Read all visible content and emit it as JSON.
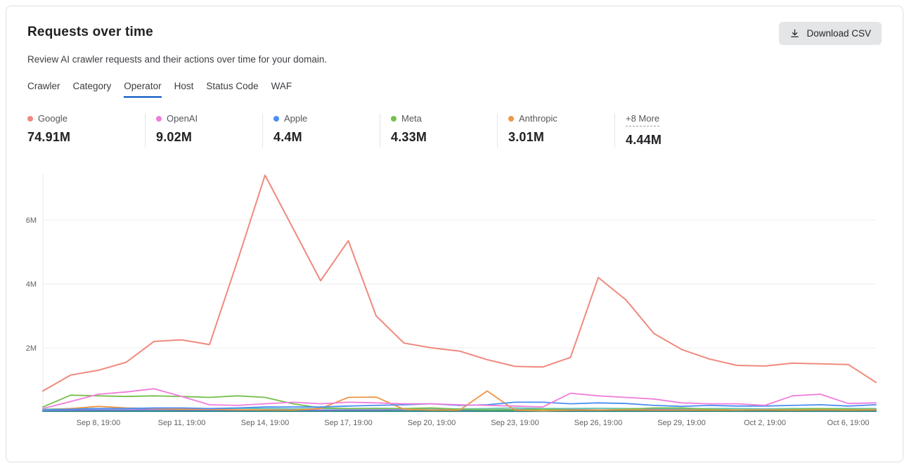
{
  "accent_color": "#0051c3",
  "card": {
    "title": "Requests over time",
    "subtitle": "Review AI crawler requests and their actions over time for your domain.",
    "download_button_label": "Download CSV"
  },
  "tabs": [
    {
      "label": "Crawler",
      "active": false
    },
    {
      "label": "Category",
      "active": false
    },
    {
      "label": "Operator",
      "active": true
    },
    {
      "label": "Host",
      "active": false
    },
    {
      "label": "Status Code",
      "active": false
    },
    {
      "label": "WAF",
      "active": false
    }
  ],
  "stats": [
    {
      "label": "Google",
      "value": "74.91M",
      "color": "#f0897e",
      "more": false
    },
    {
      "label": "OpenAI",
      "value": "9.02M",
      "color": "#f07ddb",
      "more": false
    },
    {
      "label": "Apple",
      "value": "4.4M",
      "color": "#4a8ef0",
      "more": false
    },
    {
      "label": "Meta",
      "value": "4.33M",
      "color": "#74bf4b",
      "more": false
    },
    {
      "label": "Anthropic",
      "value": "3.01M",
      "color": "#f09543",
      "more": false
    },
    {
      "label": "+8 More",
      "value": "4.44M",
      "color": null,
      "more": true
    }
  ],
  "chart_data": {
    "type": "line",
    "grid": "horizontal",
    "legend_position": "top-stats-row",
    "ylim": [
      0,
      7.5
    ],
    "y_ticks": [
      {
        "value": 2,
        "label": "2M"
      },
      {
        "value": 4,
        "label": "4M"
      },
      {
        "value": 6,
        "label": "6M"
      }
    ],
    "x_tick_labels": [
      "Sep 8, 19:00",
      "Sep 11, 19:00",
      "Sep 14, 19:00",
      "Sep 17, 19:00",
      "Sep 20, 19:00",
      "Sep 23, 19:00",
      "Sep 26, 19:00",
      "Sep 29, 19:00",
      "Oct 2, 19:00",
      "Oct 6, 19:00"
    ],
    "tick_indices": [
      2,
      5,
      8,
      11,
      14,
      17,
      20,
      23,
      26,
      29
    ],
    "unit": "M requests",
    "series": [
      {
        "name": "more-dark-teal",
        "color": "#16807a",
        "width": 2,
        "values": [
          0.02,
          0.02,
          0.02,
          0.02,
          0.02,
          0.02,
          0.02,
          0.02,
          0.02,
          0.02,
          0.02,
          0.02,
          0.02,
          0.02,
          0.02,
          0.02,
          0.02,
          0.02,
          0.02,
          0.02,
          0.02,
          0.02,
          0.02,
          0.02,
          0.02,
          0.02,
          0.02,
          0.02,
          0.02,
          0.02,
          0.02
        ]
      },
      {
        "name": "more-light-teal",
        "color": "#63c6ad",
        "width": 1.8,
        "values": [
          0.08,
          0.1,
          0.1,
          0.11,
          0.1,
          0.1,
          0.09,
          0.1,
          0.1,
          0.09,
          0.1,
          0.1,
          0.11,
          0.1,
          0.1,
          0.09,
          0.1,
          0.12,
          0.1,
          0.1,
          0.11,
          0.1,
          0.1,
          0.09,
          0.1,
          0.1,
          0.09,
          0.1,
          0.1,
          0.1,
          0.1
        ]
      },
      {
        "name": "more-purple",
        "color": "#8d7be0",
        "width": 1.8,
        "values": [
          0.04,
          0.05,
          0.06,
          0.06,
          0.07,
          0.06,
          0.06,
          0.05,
          0.06,
          0.06,
          0.05,
          0.06,
          0.06,
          0.07,
          0.06,
          0.06,
          0.06,
          0.07,
          0.08,
          0.07,
          0.06,
          0.06,
          0.07,
          0.06,
          0.06,
          0.05,
          0.06,
          0.06,
          0.07,
          0.06,
          0.06
        ]
      },
      {
        "name": "Meta",
        "color": "#74bf4b",
        "width": 1.8,
        "values": [
          0.15,
          0.52,
          0.5,
          0.48,
          0.5,
          0.48,
          0.45,
          0.5,
          0.45,
          0.25,
          0.12,
          0.1,
          0.1,
          0.1,
          0.12,
          0.08,
          0.06,
          0.06,
          0.08,
          0.06,
          0.05,
          0.08,
          0.12,
          0.12,
          0.08,
          0.06,
          0.06,
          0.08,
          0.1,
          0.08,
          0.08
        ]
      },
      {
        "name": "Anthropic",
        "color": "#f09543",
        "width": 1.8,
        "values": [
          0.05,
          0.1,
          0.17,
          0.12,
          0.1,
          0.08,
          0.08,
          0.06,
          0.06,
          0.05,
          0.1,
          0.45,
          0.46,
          0.08,
          0.05,
          0.05,
          0.65,
          0.05,
          0.03,
          0.05,
          0.05,
          0.06,
          0.05,
          0.05,
          0.05,
          0.05,
          0.06,
          0.05,
          0.06,
          0.05,
          0.06
        ]
      },
      {
        "name": "Apple",
        "color": "#4a8ef0",
        "width": 1.8,
        "values": [
          0.05,
          0.08,
          0.1,
          0.1,
          0.12,
          0.12,
          0.1,
          0.12,
          0.15,
          0.15,
          0.15,
          0.18,
          0.2,
          0.22,
          0.25,
          0.2,
          0.22,
          0.3,
          0.3,
          0.25,
          0.28,
          0.26,
          0.2,
          0.17,
          0.2,
          0.18,
          0.18,
          0.2,
          0.22,
          0.18,
          0.22
        ]
      },
      {
        "name": "OpenAI",
        "color": "#f07ddb",
        "width": 1.8,
        "values": [
          0.1,
          0.32,
          0.55,
          0.62,
          0.72,
          0.48,
          0.22,
          0.2,
          0.25,
          0.3,
          0.25,
          0.3,
          0.28,
          0.25,
          0.25,
          0.22,
          0.2,
          0.18,
          0.15,
          0.58,
          0.5,
          0.45,
          0.4,
          0.28,
          0.25,
          0.25,
          0.2,
          0.5,
          0.55,
          0.26,
          0.28
        ]
      },
      {
        "name": "Google",
        "color": "#f0897e",
        "width": 2,
        "values": [
          0.65,
          1.15,
          1.3,
          1.55,
          2.2,
          2.25,
          2.1,
          4.7,
          7.4,
          5.75,
          4.1,
          5.35,
          3.0,
          2.15,
          2.0,
          1.9,
          1.63,
          1.42,
          1.4,
          1.7,
          4.2,
          3.5,
          2.45,
          1.95,
          1.65,
          1.45,
          1.43,
          1.52,
          1.5,
          1.48,
          0.92
        ]
      }
    ]
  }
}
